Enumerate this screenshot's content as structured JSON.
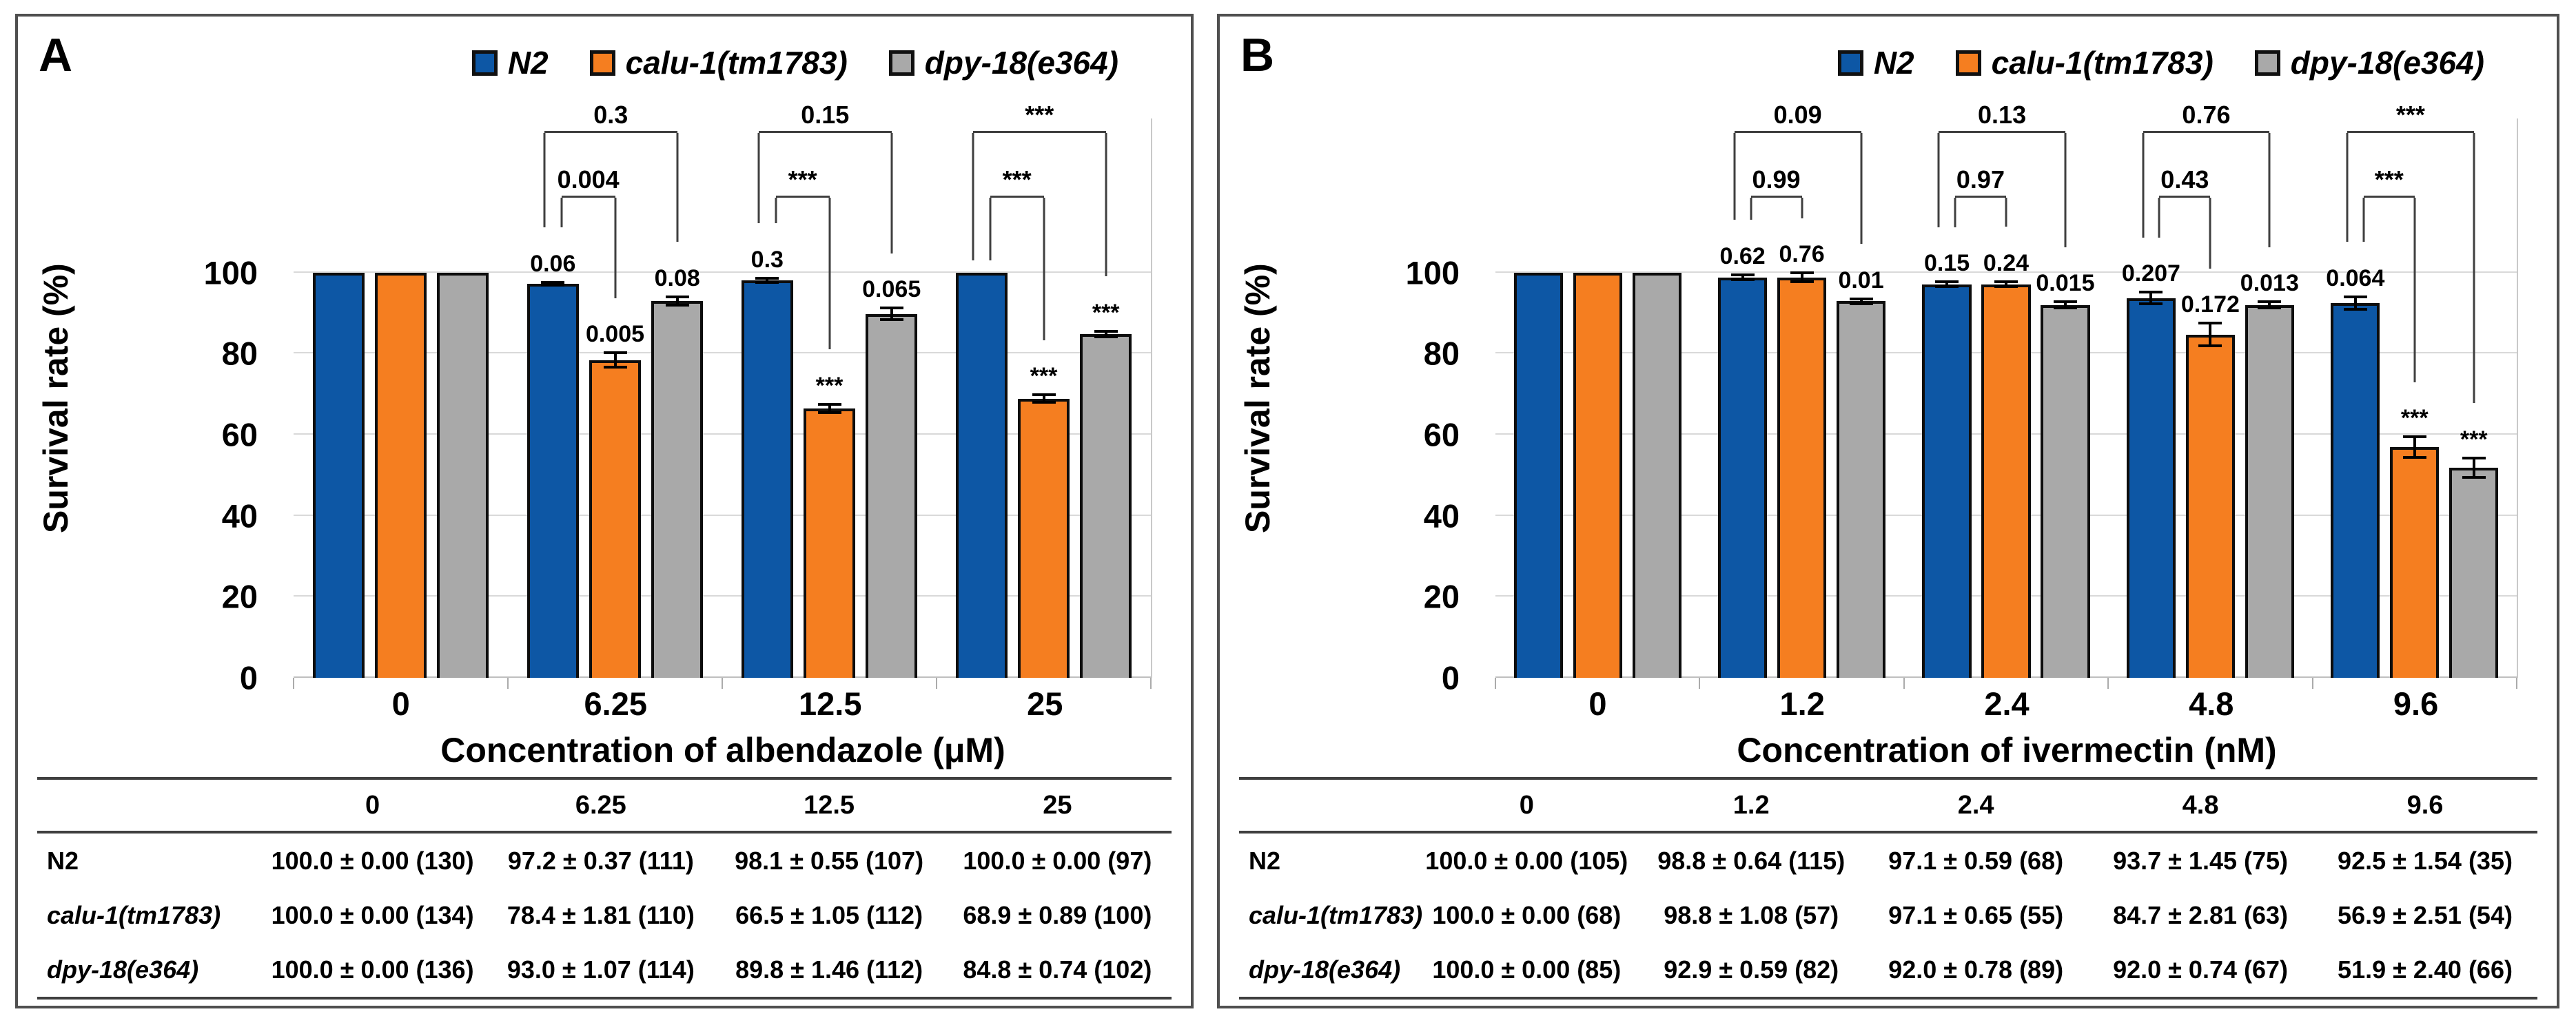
{
  "figure_title": "",
  "chart_data": [
    {
      "type": "bar",
      "panel": "A",
      "title": "",
      "xlabel": "Concentration of albendazole (μM)",
      "ylabel": "Survival rate (%)",
      "ylim": [
        0,
        100
      ],
      "yticks": [
        0,
        20,
        40,
        60,
        80,
        100
      ],
      "grid": true,
      "legend_position": "top-right",
      "categories": [
        "0",
        "6.25",
        "12.5",
        "25"
      ],
      "series": [
        {
          "name": "N2",
          "color": "#0d57a5",
          "values": [
            100.0,
            97.2,
            98.1,
            100.0
          ],
          "errors": [
            0,
            0.37,
            0.55,
            0
          ],
          "labels": [
            "",
            "0.06",
            "0.3",
            ""
          ]
        },
        {
          "name": "calu-1(tm1783)",
          "color": "#f57e20",
          "values": [
            100.0,
            78.4,
            66.5,
            68.9
          ],
          "errors": [
            0,
            1.81,
            1.05,
            0.89
          ],
          "labels": [
            "",
            "0.005",
            "***",
            "***"
          ]
        },
        {
          "name": "dpy-18(e364)",
          "color": "#a9a9a9",
          "values": [
            100.0,
            93.0,
            89.8,
            84.8
          ],
          "errors": [
            0,
            1.07,
            1.46,
            0.74
          ],
          "labels": [
            "",
            "0.08",
            "0.065",
            "***"
          ]
        }
      ],
      "significance_brackets": [
        {
          "group": 1,
          "from": 0,
          "to": 1,
          "tier": "inner",
          "label": "0.004"
        },
        {
          "group": 1,
          "from": 0,
          "to": 2,
          "tier": "outer",
          "label": "0.3"
        },
        {
          "group": 2,
          "from": 0,
          "to": 1,
          "tier": "inner",
          "label": "***"
        },
        {
          "group": 2,
          "from": 0,
          "to": 2,
          "tier": "outer",
          "label": "0.15"
        },
        {
          "group": 3,
          "from": 0,
          "to": 1,
          "tier": "inner",
          "label": "***"
        },
        {
          "group": 3,
          "from": 0,
          "to": 2,
          "tier": "outer",
          "label": "***"
        }
      ]
    },
    {
      "type": "bar",
      "panel": "B",
      "title": "",
      "xlabel": "Concentration of ivermectin (nM)",
      "ylabel": "Survival rate (%)",
      "ylim": [
        0,
        100
      ],
      "yticks": [
        0,
        20,
        40,
        60,
        80,
        100
      ],
      "grid": true,
      "legend_position": "top-right",
      "categories": [
        "0",
        "1.2",
        "2.4",
        "4.8",
        "9.6"
      ],
      "series": [
        {
          "name": "N2",
          "color": "#0d57a5",
          "values": [
            100.0,
            98.8,
            97.1,
            93.7,
            92.5
          ],
          "errors": [
            0,
            0.64,
            0.59,
            1.45,
            1.54
          ],
          "labels": [
            "",
            "0.62",
            "0.15",
            "0.207",
            "0.064"
          ]
        },
        {
          "name": "calu-1(tm1783)",
          "color": "#f57e20",
          "values": [
            100.0,
            98.8,
            97.1,
            84.7,
            56.9
          ],
          "errors": [
            0,
            1.08,
            0.65,
            2.81,
            2.51
          ],
          "labels": [
            "",
            "0.76",
            "0.24",
            "0.172",
            "***"
          ]
        },
        {
          "name": "dpy-18(e364)",
          "color": "#a9a9a9",
          "values": [
            100.0,
            92.9,
            92.0,
            92.0,
            51.9
          ],
          "errors": [
            0,
            0.59,
            0.78,
            0.74,
            2.4
          ],
          "labels": [
            "",
            "0.01",
            "0.015",
            "0.013",
            "***"
          ]
        }
      ],
      "significance_brackets": [
        {
          "group": 1,
          "from": 0,
          "to": 1,
          "tier": "inner",
          "label": "0.99"
        },
        {
          "group": 1,
          "from": 0,
          "to": 2,
          "tier": "outer",
          "label": "0.09"
        },
        {
          "group": 2,
          "from": 0,
          "to": 1,
          "tier": "inner",
          "label": "0.97"
        },
        {
          "group": 2,
          "from": 0,
          "to": 2,
          "tier": "outer",
          "label": "0.13"
        },
        {
          "group": 3,
          "from": 0,
          "to": 1,
          "tier": "inner",
          "label": "0.43"
        },
        {
          "group": 3,
          "from": 0,
          "to": 2,
          "tier": "outer",
          "label": "0.76"
        },
        {
          "group": 4,
          "from": 0,
          "to": 1,
          "tier": "inner",
          "label": "***"
        },
        {
          "group": 4,
          "from": 0,
          "to": 2,
          "tier": "outer",
          "label": "***"
        }
      ]
    }
  ],
  "panels": [
    {
      "label": "A",
      "legend": [
        {
          "name": "N2",
          "color": "#0d57a5"
        },
        {
          "name": "calu-1(tm1783)",
          "color": "#f57e20"
        },
        {
          "name": "dpy-18(e364)",
          "color": "#a9a9a9"
        }
      ],
      "table": {
        "col_headers": [
          "0",
          "6.25",
          "12.5",
          "25"
        ],
        "rows": [
          {
            "label": "N2",
            "italic": false,
            "cells": [
              "100.0 ± 0.00 (130)",
              "97.2 ± 0.37 (111)",
              "98.1 ± 0.55 (107)",
              "100.0 ± 0.00 (97)"
            ]
          },
          {
            "label": "calu-1(tm1783)",
            "italic": true,
            "cells": [
              "100.0 ± 0.00 (134)",
              "78.4 ± 1.81 (110)",
              "66.5 ± 1.05 (112)",
              "68.9 ± 0.89 (100)"
            ]
          },
          {
            "label": "dpy-18(e364)",
            "italic": true,
            "cells": [
              "100.0 ± 0.00 (136)",
              "93.0 ± 1.07 (114)",
              "89.8 ± 1.46 (112)",
              "84.8 ± 0.74 (102)"
            ]
          }
        ]
      }
    },
    {
      "label": "B",
      "legend": [
        {
          "name": "N2",
          "color": "#0d57a5"
        },
        {
          "name": "calu-1(tm1783)",
          "color": "#f57e20"
        },
        {
          "name": "dpy-18(e364)",
          "color": "#a9a9a9"
        }
      ],
      "table": {
        "col_headers": [
          "0",
          "1.2",
          "2.4",
          "4.8",
          "9.6"
        ],
        "rows": [
          {
            "label": "N2",
            "italic": false,
            "cells": [
              "100.0 ± 0.00 (105)",
              "98.8 ± 0.64 (115)",
              "97.1 ± 0.59 (68)",
              "93.7 ± 1.45 (75)",
              "92.5 ± 1.54 (35)"
            ]
          },
          {
            "label": "calu-1(tm1783)",
            "italic": true,
            "cells": [
              "100.0 ± 0.00 (68)",
              "98.8 ± 1.08 (57)",
              "97.1 ± 0.65 (55)",
              "84.7 ± 2.81 (63)",
              "56.9 ± 2.51 (54)"
            ]
          },
          {
            "label": "dpy-18(e364)",
            "italic": true,
            "cells": [
              "100.0 ± 0.00 (85)",
              "92.9 ± 0.59 (82)",
              "92.0 ± 0.78 (89)",
              "92.0 ± 0.74 (67)",
              "51.9 ± 2.40 (66)"
            ]
          }
        ]
      }
    }
  ]
}
